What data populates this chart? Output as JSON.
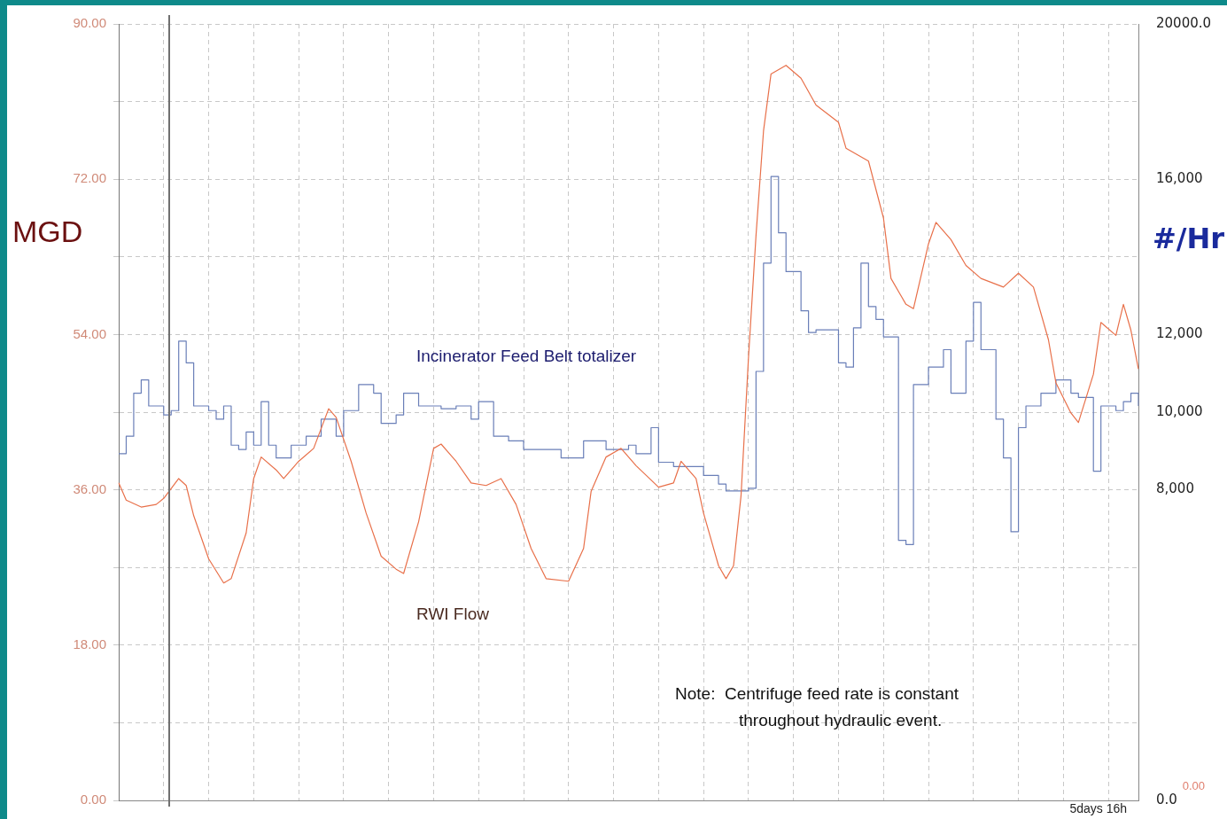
{
  "chart_data": {
    "type": "line",
    "ylabel": "MGD",
    "y2label": "#/Hr",
    "categories": [
      null,
      null,
      null,
      null,
      null,
      null,
      null,
      null,
      null,
      null,
      null,
      null,
      null,
      null,
      null,
      null,
      null,
      null,
      null,
      null,
      null,
      null,
      null,
      null,
      null,
      null,
      null,
      null,
      null,
      null,
      null,
      null,
      null,
      null,
      null,
      null,
      null,
      null,
      null,
      null,
      null,
      null,
      null,
      null,
      null,
      null,
      null,
      null,
      null,
      null,
      null,
      null,
      null,
      null,
      null,
      null,
      null,
      null,
      null,
      null,
      null,
      null,
      null,
      null,
      null,
      null,
      null,
      null,
      null,
      null,
      null,
      null,
      null,
      null,
      null,
      null,
      null,
      null,
      null,
      null,
      null,
      null,
      null,
      null,
      null,
      null,
      null,
      null,
      null,
      null,
      null,
      null,
      null,
      null,
      null,
      null,
      null,
      null,
      null,
      null,
      null,
      null,
      null,
      null,
      null,
      null,
      null,
      null,
      null,
      null,
      null,
      null,
      null,
      null,
      null,
      null,
      null,
      null,
      null,
      null,
      null,
      null,
      null,
      null,
      null,
      null,
      null,
      null,
      null,
      null,
      null,
      null,
      null,
      null,
      null,
      null,
      null
    ],
    "ylim": [
      0,
      90
    ],
    "yticks": [
      {
        "value": 0,
        "label": "0.00"
      },
      {
        "value": 9,
        "label": null
      },
      {
        "value": 18,
        "label": "18.00"
      },
      {
        "value": 27,
        "label": null
      },
      {
        "value": 36,
        "label": "36.00"
      },
      {
        "value": 45,
        "label": null
      },
      {
        "value": 54,
        "label": "54.00"
      },
      {
        "value": 63,
        "label": null
      },
      {
        "value": 72,
        "label": "72.00"
      },
      {
        "value": 81,
        "label": null
      },
      {
        "value": 90,
        "label": "90.00"
      }
    ],
    "y2lim": [
      0,
      20000
    ],
    "y2ticks": [
      {
        "value": 0,
        "label": "0.0"
      },
      {
        "value": 8000,
        "label": "8,000"
      },
      {
        "value": 10000,
        "label": "10,000"
      },
      {
        "value": 12000,
        "label": "12,000"
      },
      {
        "value": 16000,
        "label": "16,000"
      },
      {
        "value": 20000,
        "label": "20000.0"
      }
    ],
    "grid": true,
    "legend": false,
    "marker": "none",
    "line_style": "solid",
    "annotations": [
      "Note:  Centrifuge feed rate is constant\nthroughout hydraulic event.",
      "5days 16h"
    ],
    "series": [
      {
        "name": "RWI Flow",
        "color": "#e8704a",
        "values": [
          36.8,
          34.8,
          null,
          34,
          null,
          34.3,
          35,
          null,
          37.3,
          36.5,
          33,
          null,
          28,
          null,
          25.2,
          25.7,
          null,
          31,
          37.3,
          39.8,
          null,
          38.3,
          37.3,
          null,
          39.3,
          null,
          40.8,
          null,
          45.4,
          44.4,
          null,
          39.3,
          null,
          33.3,
          null,
          28.3,
          null,
          26.8,
          26.3,
          null,
          32.3,
          null,
          40.8,
          41.3,
          null,
          39.3,
          null,
          36.8,
          null,
          36.5,
          null,
          37.3,
          null,
          34.3,
          null,
          29.2,
          null,
          25.7,
          null,
          null,
          25.4,
          null,
          29.2,
          35.8,
          null,
          39.8,
          null,
          40.8,
          null,
          38.8,
          null,
          null,
          36.3,
          null,
          36.8,
          39.3,
          null,
          37.3,
          33.3,
          null,
          27.2,
          25.7,
          27.2,
          35.3,
          51.4,
          65.5,
          77.6,
          84.2,
          null,
          85.2,
          null,
          83.7,
          null,
          80.6,
          null,
          null,
          78.6,
          75.6,
          null,
          null,
          74.1,
          null,
          67.5,
          60.5,
          null,
          57.5,
          57,
          null,
          64.5,
          67,
          null,
          65,
          null,
          62,
          null,
          60.5,
          null,
          null,
          59.5,
          null,
          61.1,
          null,
          59.5,
          null,
          53.4,
          48.4,
          null,
          44.9,
          43.8,
          null,
          49.4,
          55.4,
          null,
          53.9,
          57.5,
          54.5,
          50
        ]
      },
      {
        "name": "Incinerator Feed Belt totalizer",
        "color": "#6a7fb8",
        "type": "step",
        "axis": "y2",
        "values": [
          8930,
          9380,
          10490,
          10830,
          10160,
          null,
          9930,
          10040,
          11830,
          11270,
          10160,
          null,
          10040,
          9820,
          10160,
          9150,
          9040,
          9490,
          9150,
          10270,
          9150,
          8820,
          null,
          9150,
          null,
          9380,
          null,
          9820,
          null,
          9380,
          10040,
          null,
          10710,
          null,
          10490,
          9710,
          null,
          9930,
          10490,
          null,
          10160,
          null,
          null,
          10090,
          null,
          10160,
          null,
          9820,
          10270,
          null,
          9380,
          null,
          9260,
          null,
          9040,
          null,
          null,
          9040,
          null,
          8820,
          null,
          null,
          9260,
          null,
          null,
          9040,
          null,
          null,
          9150,
          8930,
          null,
          9600,
          8710,
          null,
          8600,
          null,
          8600,
          null,
          8370,
          null,
          8150,
          7970,
          null,
          null,
          8040,
          11050,
          13840,
          16070,
          14620,
          13620,
          null,
          12610,
          12050,
          12120,
          null,
          null,
          11270,
          11160,
          12170,
          13840,
          12720,
          12390,
          11940,
          null,
          6700,
          6590,
          10710,
          null,
          11160,
          null,
          11610,
          10490,
          null,
          11830,
          12830,
          11610,
          null,
          9820,
          8820,
          6920,
          9600,
          10160,
          null,
          10490,
          null,
          10830,
          null,
          10490,
          10380,
          null,
          8480,
          10160,
          null,
          10040,
          10270,
          10490,
          10160
        ]
      }
    ]
  }
}
